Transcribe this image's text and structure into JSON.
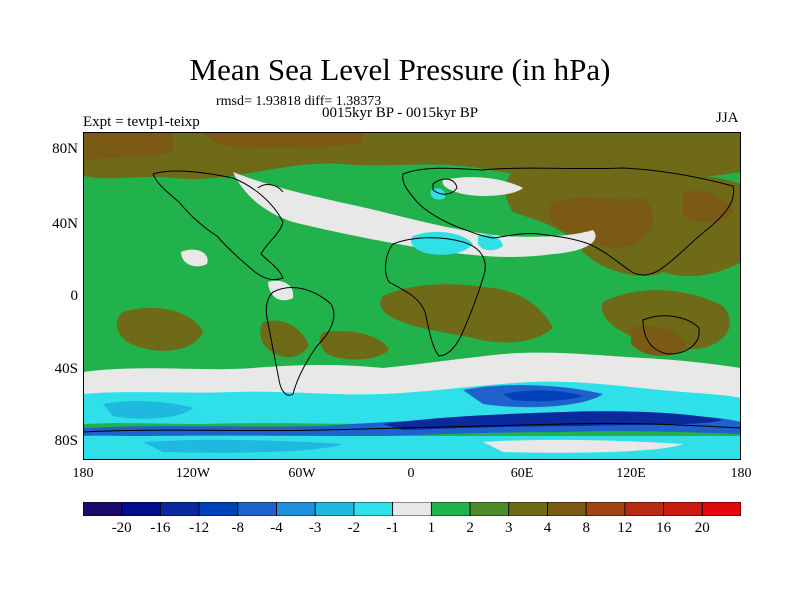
{
  "title": "Mean Sea Level Pressure (in hPa)",
  "stats": "rmsd= 1.93818 diff= 1.38373",
  "subtitle": "0015kyr BP - 0015kyr BP",
  "experiment": "Expt = tevtp1-teixp",
  "season": "JJA",
  "lat_labels": [
    "80N",
    "40N",
    "0",
    "40S",
    "80S"
  ],
  "lon_labels": [
    "180",
    "120W",
    "60W",
    "0",
    "60E",
    "120E",
    "180"
  ],
  "colorbar": {
    "labels": [
      "-20",
      "-16",
      "-12",
      "-8",
      "-4",
      "-3",
      "-2",
      "-1",
      "1",
      "2",
      "3",
      "4",
      "8",
      "12",
      "16",
      "20"
    ],
    "colors": [
      "#1a0a6b",
      "#000c8f",
      "#0a2a9e",
      "#0040b8",
      "#1f62cc",
      "#1f8fd9",
      "#1fb9e0",
      "#2fe0e8",
      "#e8e8e8",
      "#22b24c",
      "#4e8c2a",
      "#6e6a18",
      "#7a5a14",
      "#a04414",
      "#b82a12",
      "#cc1a10",
      "#e00a0a"
    ]
  },
  "colors": {
    "land_outline": "#000000",
    "background": "#ffffff"
  }
}
